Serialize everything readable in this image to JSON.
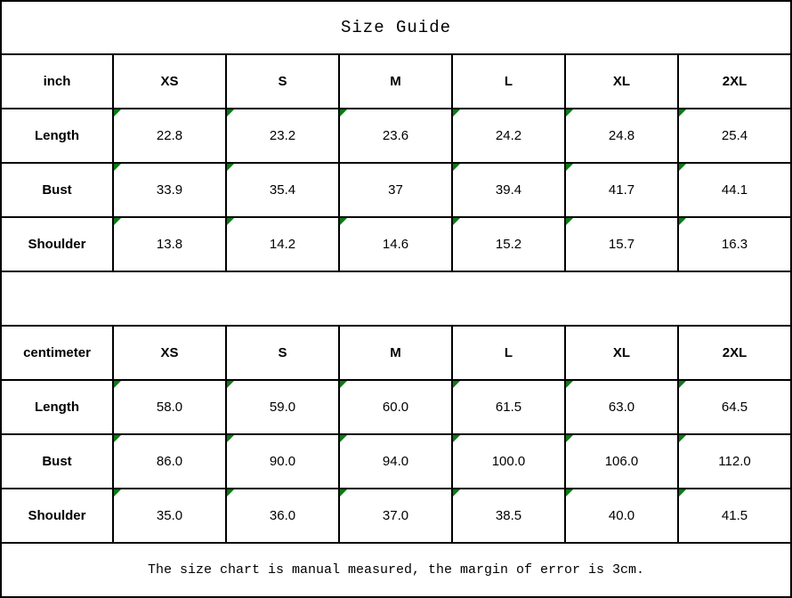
{
  "title": "Size Guide",
  "footer_note": "The size chart is manual measured, the margin of error is 3cm.",
  "colors": {
    "border": "#000000",
    "text": "#000000",
    "background": "#ffffff",
    "marker_green": "#0c7a14"
  },
  "chart_data": [
    {
      "type": "table",
      "title": "Size Guide",
      "unit": "inch",
      "header": [
        "inch",
        "XS",
        "S",
        "M",
        "L",
        "XL",
        "2XL"
      ],
      "rows": [
        {
          "label": "Length",
          "values": [
            "22.8",
            "23.2",
            "23.6",
            "24.2",
            "24.8",
            "25.4"
          ],
          "flags": [
            true,
            true,
            true,
            true,
            true,
            true
          ]
        },
        {
          "label": "Bust",
          "values": [
            "33.9",
            "35.4",
            "37",
            "39.4",
            "41.7",
            "44.1"
          ],
          "flags": [
            true,
            true,
            false,
            true,
            true,
            true
          ]
        },
        {
          "label": "Shoulder",
          "values": [
            "13.8",
            "14.2",
            "14.6",
            "15.2",
            "15.7",
            "16.3"
          ],
          "flags": [
            true,
            true,
            true,
            true,
            true,
            true
          ]
        }
      ]
    },
    {
      "type": "table",
      "title": "Size Guide",
      "unit": "centimeter",
      "header": [
        "centimeter",
        "XS",
        "S",
        "M",
        "L",
        "XL",
        "2XL"
      ],
      "rows": [
        {
          "label": "Length",
          "values": [
            "58.0",
            "59.0",
            "60.0",
            "61.5",
            "63.0",
            "64.5"
          ],
          "flags": [
            true,
            true,
            true,
            true,
            true,
            true
          ]
        },
        {
          "label": "Bust",
          "values": [
            "86.0",
            "90.0",
            "94.0",
            "100.0",
            "106.0",
            "112.0"
          ],
          "flags": [
            true,
            true,
            true,
            true,
            true,
            true
          ]
        },
        {
          "label": "Shoulder",
          "values": [
            "35.0",
            "36.0",
            "37.0",
            "38.5",
            "40.0",
            "41.5"
          ],
          "flags": [
            true,
            true,
            true,
            true,
            true,
            true
          ]
        }
      ]
    }
  ]
}
